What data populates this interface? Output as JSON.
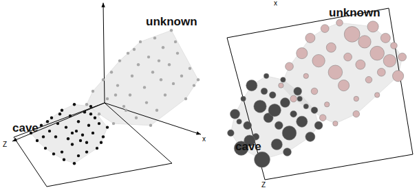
{
  "chart_data": [
    {
      "type": "scatter",
      "xlim": [
        0,
        100
      ],
      "ylim": [
        0,
        100
      ],
      "tick_labels": false,
      "x_label": "x",
      "z_label": "Z",
      "series": [
        {
          "name": "cave",
          "color": "#111111",
          "marker": "circle",
          "x": [
            15,
            18,
            20,
            22,
            24,
            25,
            27,
            28,
            30,
            30,
            32,
            33,
            34,
            35,
            36,
            37,
            38,
            38,
            40,
            41,
            42,
            43,
            44,
            45,
            46,
            47,
            48,
            50,
            52,
            26,
            29,
            31,
            35,
            39,
            44,
            21,
            23,
            36,
            42,
            49
          ],
          "values": [
            30,
            26,
            34,
            22,
            31,
            38,
            28,
            35,
            20,
            42,
            33,
            27,
            39,
            24,
            45,
            31,
            18,
            36,
            29,
            41,
            25,
            34,
            44,
            30,
            38,
            22,
            35,
            28,
            33,
            19,
            40,
            16,
            30,
            26,
            40,
            28,
            36,
            14,
            20,
            25
          ]
        },
        {
          "name": "unknown",
          "color": "#a8a8a8",
          "marker": "circle",
          "x": [
            42,
            45,
            48,
            50,
            52,
            54,
            55,
            57,
            58,
            60,
            62,
            63,
            64,
            66,
            67,
            68,
            70,
            71,
            72,
            74,
            75,
            76,
            78,
            79,
            80,
            82,
            83,
            84,
            86,
            88,
            90,
            92,
            94,
            96,
            56,
            61,
            65,
            73,
            77,
            85
          ],
          "values": [
            45,
            52,
            40,
            58,
            48,
            62,
            35,
            55,
            68,
            44,
            72,
            50,
            60,
            38,
            66,
            78,
            54,
            46,
            70,
            62,
            80,
            42,
            58,
            75,
            50,
            66,
            84,
            56,
            72,
            60,
            48,
            64,
            55,
            58,
            50,
            42,
            74,
            34,
            68,
            78
          ]
        }
      ]
    },
    {
      "type": "scatter",
      "xlim": [
        0,
        100
      ],
      "ylim": [
        0,
        100
      ],
      "tick_labels": false,
      "x_label": "x",
      "z_label": "Z",
      "series": [
        {
          "name": "cave",
          "color": "#4a4a4a",
          "marker": "circle",
          "x": [
            10,
            12,
            15,
            16,
            18,
            20,
            22,
            24,
            25,
            27,
            28,
            30,
            32,
            33,
            35,
            36,
            38,
            40,
            42,
            44,
            46,
            48,
            50,
            52,
            14,
            19,
            26,
            31,
            37,
            43
          ],
          "values": [
            30,
            40,
            22,
            48,
            34,
            55,
            28,
            44,
            16,
            60,
            38,
            50,
            24,
            34,
            58,
            46,
            30,
            40,
            52,
            36,
            44,
            28,
            42,
            34,
            36,
            26,
            52,
            42,
            20,
            48
          ],
          "sizes": [
            3,
            5,
            8,
            2,
            4,
            6,
            3,
            7,
            9,
            2,
            5,
            3,
            6,
            4,
            2,
            5,
            8,
            3,
            4,
            6,
            2,
            5,
            3,
            4,
            2,
            6,
            3,
            7,
            4,
            2
          ]
        },
        {
          "name": "unknown",
          "color": "#d6b4b4",
          "marker": "circle",
          "x": [
            34,
            38,
            40,
            44,
            46,
            48,
            50,
            52,
            55,
            56,
            58,
            60,
            62,
            64,
            66,
            68,
            70,
            72,
            74,
            76,
            78,
            80,
            82,
            84,
            86,
            88,
            90,
            92,
            60,
            70,
            80,
            54
          ],
          "values": [
            55,
            65,
            48,
            72,
            60,
            80,
            52,
            68,
            85,
            45,
            75,
            62,
            88,
            55,
            70,
            82,
            48,
            66,
            78,
            58,
            86,
            72,
            62,
            80,
            68,
            76,
            60,
            70,
            35,
            40,
            50,
            38
          ],
          "sizes": [
            2,
            4,
            3,
            6,
            2,
            5,
            3,
            7,
            4,
            2,
            5,
            8,
            3,
            6,
            4,
            9,
            2,
            5,
            7,
            3,
            6,
            8,
            4,
            5,
            7,
            3,
            6,
            4,
            2,
            3,
            2,
            3
          ]
        }
      ]
    }
  ]
}
